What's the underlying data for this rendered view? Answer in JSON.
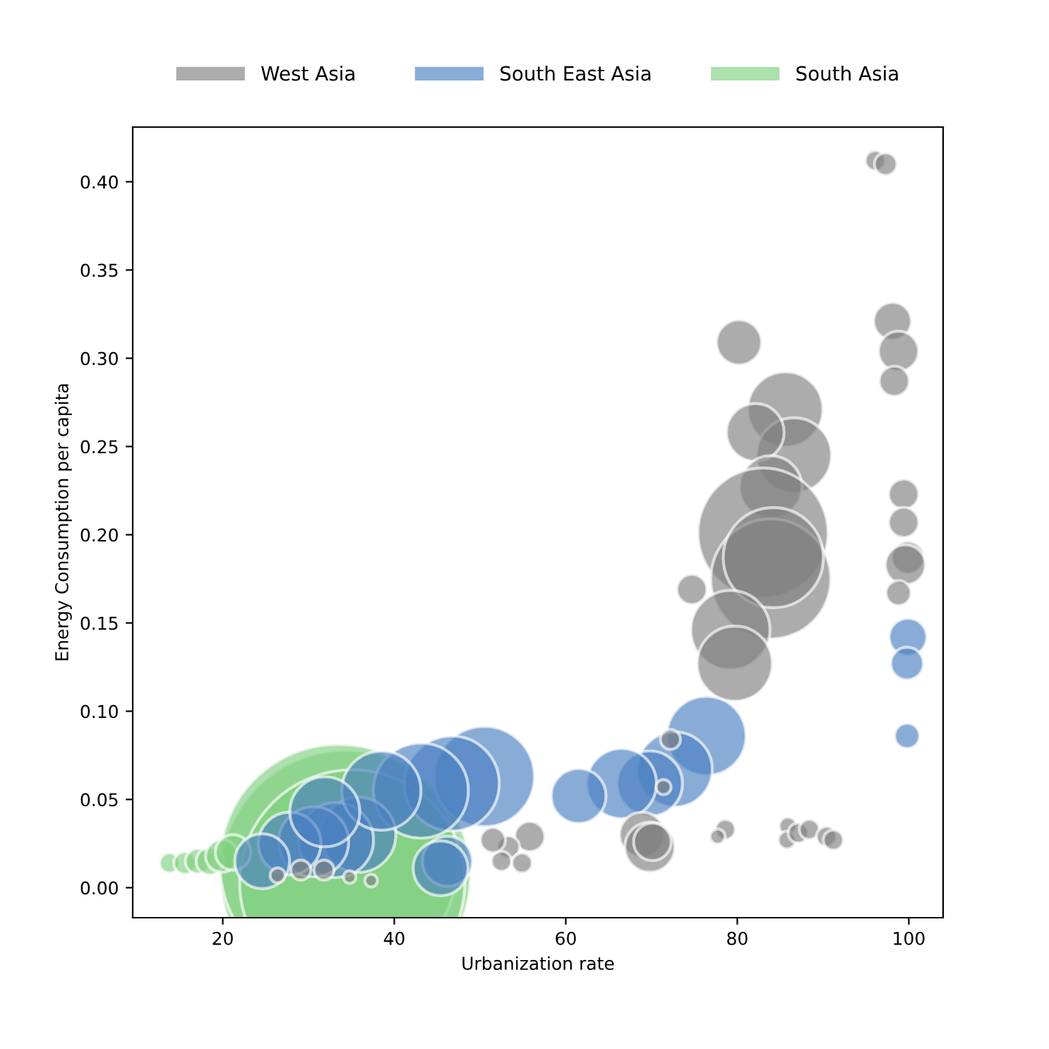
{
  "chart_data": {
    "type": "bubble",
    "xlabel": "Urbanization rate",
    "ylabel": "Energy Consumption per capita",
    "xlim": [
      9.5,
      104
    ],
    "ylim": [
      -0.017,
      0.431
    ],
    "xticks": [
      20,
      40,
      60,
      80,
      100
    ],
    "yticks": [
      {
        "value": 0,
        "label": "0.00"
      },
      {
        "value": 0.05,
        "label": "0.05"
      },
      {
        "value": 0.1,
        "label": "0.10"
      },
      {
        "value": 0.15,
        "label": "0.15"
      },
      {
        "value": 0.2,
        "label": "0.20"
      },
      {
        "value": 0.25,
        "label": "0.25"
      },
      {
        "value": 0.3,
        "label": "0.30"
      },
      {
        "value": 0.35,
        "label": "0.35"
      },
      {
        "value": 0.4,
        "label": "0.40"
      }
    ],
    "grid": false,
    "legend": "top",
    "series": [
      {
        "name": "South Asia",
        "color": "#7fcf7f",
        "x": [
          34.3,
          33.5,
          35.1,
          13.8,
          15.6,
          17.1,
          18.5,
          19.9,
          21.2
        ],
        "values": [
          0.007,
          0.014,
          0.003,
          0.014,
          0.014,
          0.015,
          0.015,
          0.018,
          0.02
        ],
        "sizes": [
          1,
          0.9,
          0.81,
          0.0064,
          0.0081,
          0.01,
          0.012,
          0.017,
          0.02
        ]
      },
      {
        "name": "South East Asia",
        "color": "#4a7fc1",
        "x": [
          99.9,
          99.8,
          99.8,
          76.4,
          72.7,
          69.8,
          66.5,
          61.5,
          50.5,
          46.7,
          43.1,
          46.2,
          45.4,
          35.8,
          33.2,
          30.6,
          27.8,
          24.6,
          38.5,
          31.9
        ],
        "values": [
          0.142,
          0.127,
          0.086,
          0.086,
          0.067,
          0.059,
          0.059,
          0.052,
          0.063,
          0.059,
          0.055,
          0.015,
          0.011,
          0.03,
          0.027,
          0.026,
          0.025,
          0.015,
          0.055,
          0.043
        ],
        "sizes": [
          0.0225,
          0.017,
          0.01,
          0.1,
          0.09,
          0.068,
          0.078,
          0.048,
          0.16,
          0.144,
          0.144,
          0.04,
          0.048,
          0.09,
          0.09,
          0.078,
          0.0625,
          0.048,
          0.1,
          0.078
        ]
      },
      {
        "name": "West Asia",
        "color": "#808080",
        "x": [
          96.1,
          97.3,
          80.2,
          98.1,
          98.8,
          98.3,
          85.6,
          86.6,
          82.1,
          83.9,
          99.4,
          99.4,
          99.9,
          99.6,
          98.8,
          83.0,
          83.9,
          84.2,
          79.2,
          79.7,
          74.7,
          68.9,
          69.8,
          70.1,
          78.6,
          77.7,
          85.9,
          85.8,
          87.1,
          88.4,
          90.4,
          91.2,
          72.2,
          71.4,
          26.4,
          29.1,
          31.8,
          34.8,
          37.3,
          55.8,
          53.3,
          52.5,
          54.9,
          51.5
        ],
        "values": [
          0.412,
          0.41,
          0.309,
          0.321,
          0.304,
          0.287,
          0.271,
          0.245,
          0.258,
          0.227,
          0.223,
          0.207,
          0.187,
          0.183,
          0.167,
          0.201,
          0.175,
          0.187,
          0.146,
          0.127,
          0.169,
          0.03,
          0.023,
          0.026,
          0.033,
          0.029,
          0.035,
          0.027,
          0.031,
          0.033,
          0.029,
          0.027,
          0.084,
          0.057,
          0.007,
          0.01,
          0.01,
          0.006,
          0.004,
          0.029,
          0.023,
          0.015,
          0.014,
          0.027
        ],
        "sizes": [
          0.0064,
          0.0081,
          0.0324,
          0.0225,
          0.0256,
          0.0144,
          0.09,
          0.09,
          0.053,
          0.0625,
          0.0144,
          0.0144,
          0.017,
          0.0256,
          0.01,
          0.27,
          0.23,
          0.16,
          0.1,
          0.09,
          0.0144,
          0.0324,
          0.04,
          0.0225,
          0.0064,
          0.0036,
          0.0049,
          0.0049,
          0.0064,
          0.0064,
          0.0064,
          0.0064,
          0.0064,
          0.0036,
          0.0036,
          0.0064,
          0.0064,
          0.0025,
          0.0025,
          0.0144,
          0.0081,
          0.0064,
          0.0064,
          0.01
        ]
      }
    ]
  }
}
